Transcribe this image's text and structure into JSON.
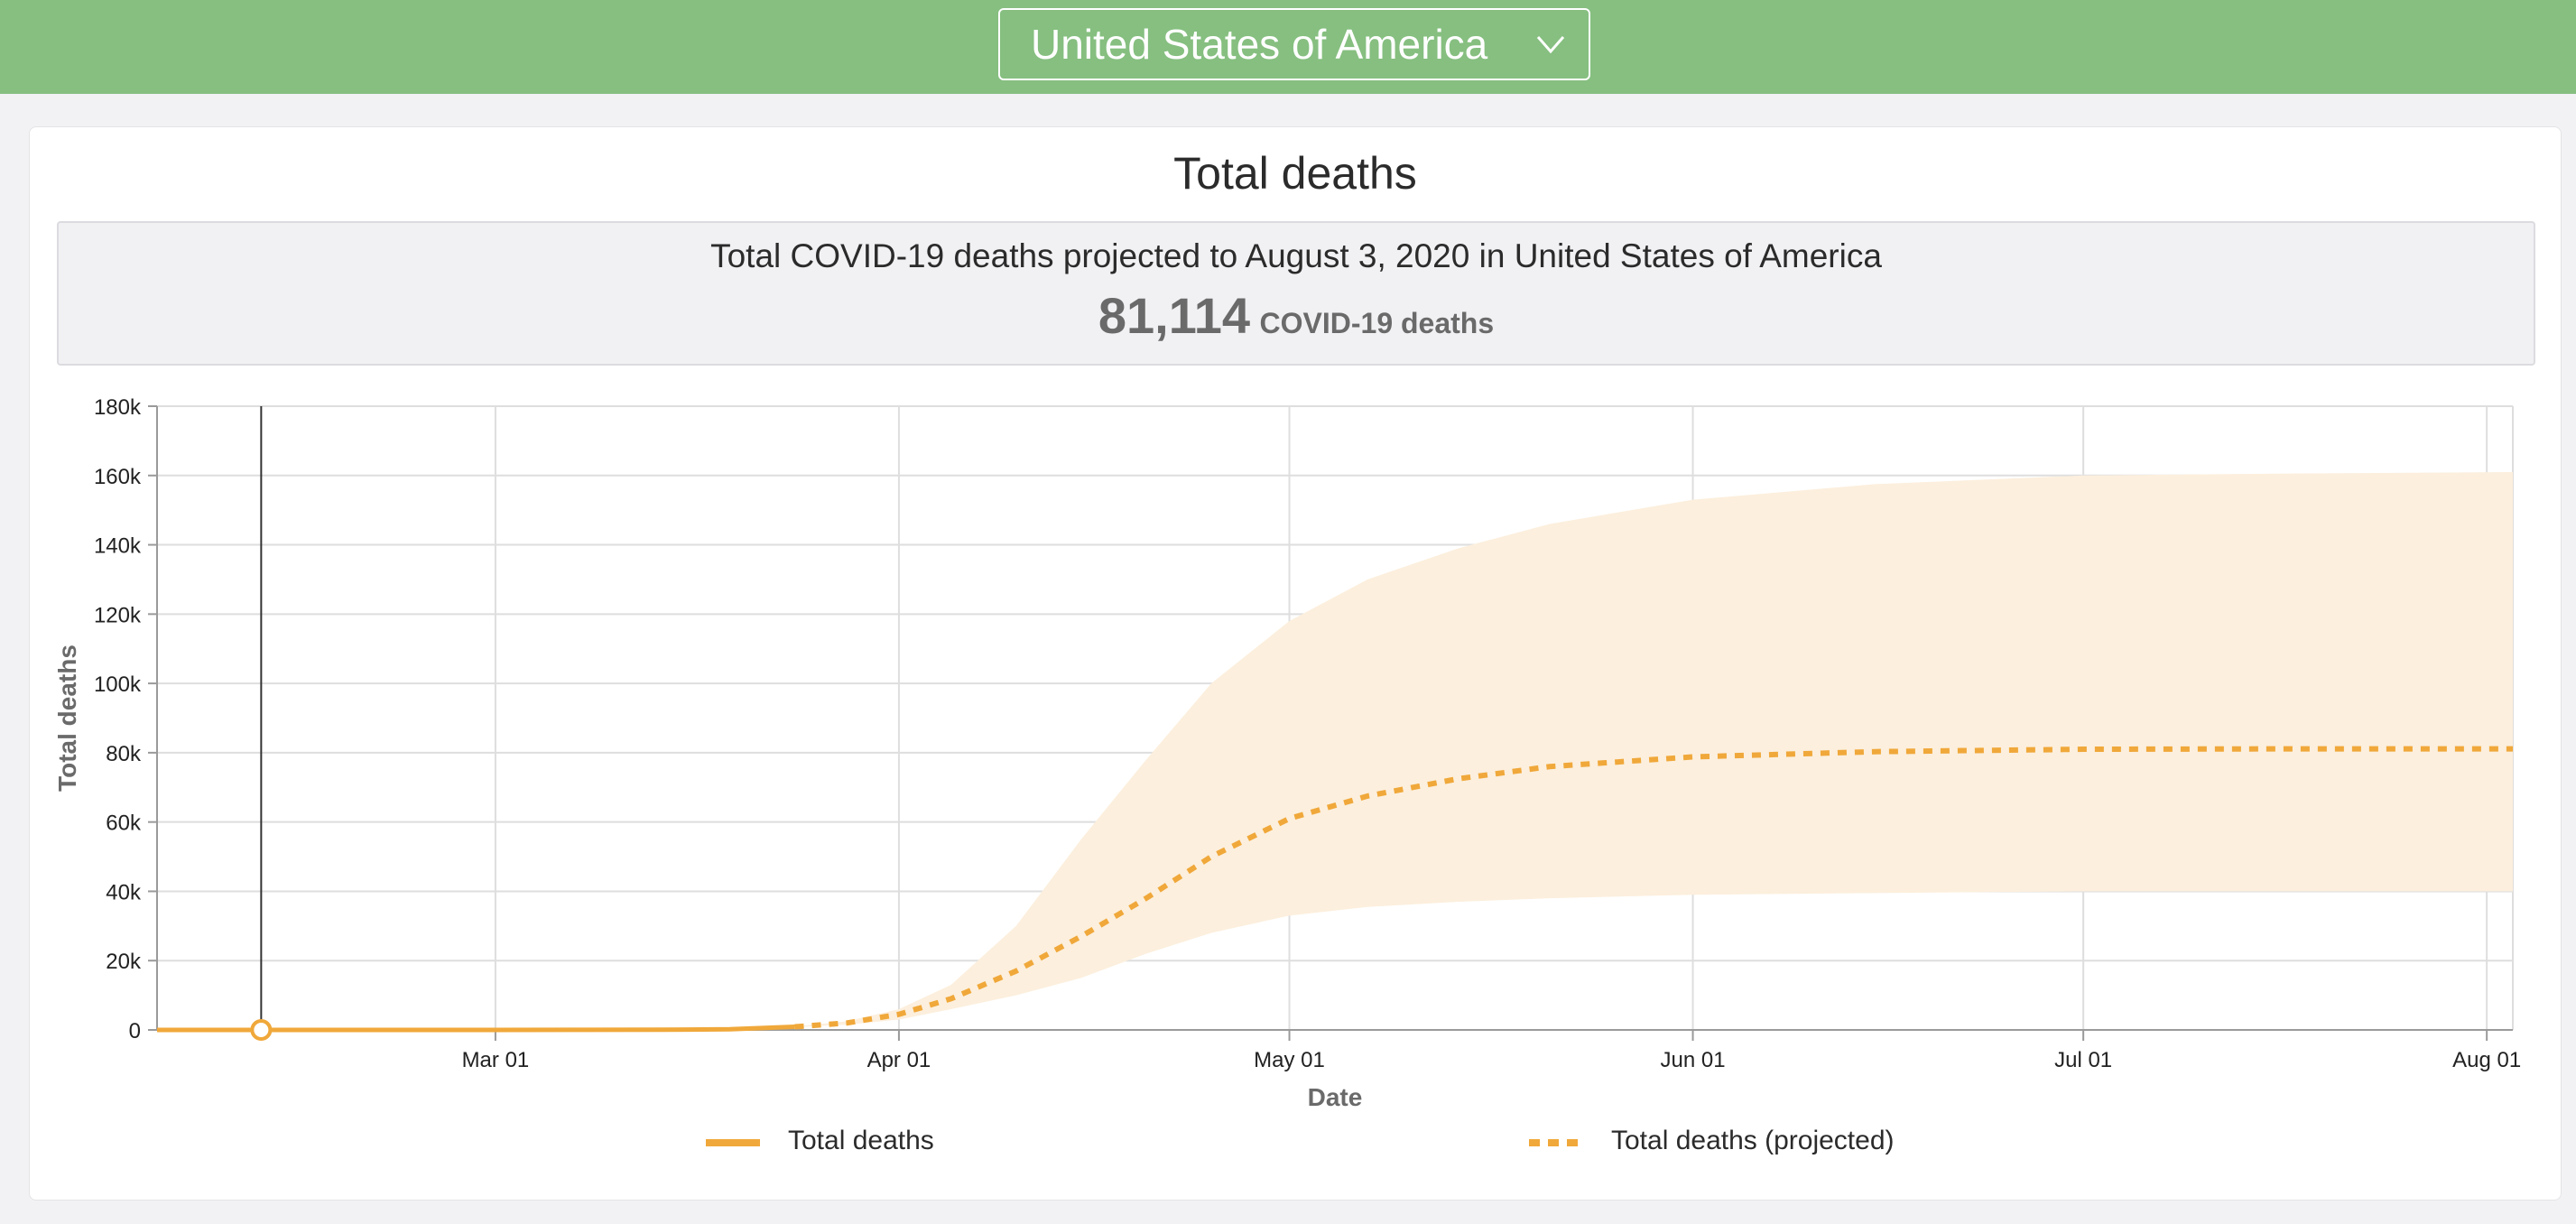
{
  "header": {
    "country_selected": "United States of America",
    "dropdown_icon": "chevron-down-icon"
  },
  "card": {
    "title": "Total deaths",
    "summary_text": "Total COVID-19 deaths projected to August 3, 2020 in United States of America",
    "summary_value": "81,114",
    "summary_unit": "COVID-19 deaths"
  },
  "colors": {
    "header_bg": "#86bf80",
    "series": "#f0a83a",
    "band": "#fcefdd",
    "grid": "#dedede",
    "cursor": "#333333"
  },
  "chart_data": {
    "type": "line",
    "xlabel": "Date",
    "ylabel": "Total deaths",
    "ylim": [
      0,
      180000
    ],
    "xlim": [
      "2020-02-04",
      "2020-08-03"
    ],
    "x_ticks": [
      {
        "label": "Mar 01",
        "date": "2020-03-01"
      },
      {
        "label": "Apr 01",
        "date": "2020-04-01"
      },
      {
        "label": "May 01",
        "date": "2020-05-01"
      },
      {
        "label": "Jun 01",
        "date": "2020-06-01"
      },
      {
        "label": "Jul 01",
        "date": "2020-07-01"
      },
      {
        "label": "Aug 01",
        "date": "2020-08-01"
      }
    ],
    "y_ticks": [
      {
        "label": "0",
        "value": 0
      },
      {
        "label": "20k",
        "value": 20000
      },
      {
        "label": "40k",
        "value": 40000
      },
      {
        "label": "60k",
        "value": 60000
      },
      {
        "label": "80k",
        "value": 80000
      },
      {
        "label": "100k",
        "value": 100000
      },
      {
        "label": "120k",
        "value": 120000
      },
      {
        "label": "140k",
        "value": 140000
      },
      {
        "label": "160k",
        "value": 160000
      },
      {
        "label": "180k",
        "value": 180000
      }
    ],
    "grid": true,
    "legend_position": "bottom",
    "hover_marker": {
      "date": "2020-02-12",
      "value": 0
    },
    "series": [
      {
        "name": "Total deaths",
        "style": "solid",
        "color": "#f0a83a",
        "points": [
          [
            "2020-02-04",
            0
          ],
          [
            "2020-02-12",
            0
          ],
          [
            "2020-02-20",
            0
          ],
          [
            "2020-03-01",
            1
          ],
          [
            "2020-03-08",
            20
          ],
          [
            "2020-03-14",
            60
          ],
          [
            "2020-03-19",
            200
          ],
          [
            "2020-03-24",
            900
          ]
        ]
      },
      {
        "name": "Total deaths (projected)",
        "style": "dashed",
        "color": "#f0a83a",
        "points": [
          [
            "2020-03-24",
            900
          ],
          [
            "2020-03-28",
            2000
          ],
          [
            "2020-04-01",
            4500
          ],
          [
            "2020-04-05",
            9000
          ],
          [
            "2020-04-10",
            17000
          ],
          [
            "2020-04-15",
            27000
          ],
          [
            "2020-04-20",
            38000
          ],
          [
            "2020-04-25",
            50000
          ],
          [
            "2020-05-01",
            61000
          ],
          [
            "2020-05-07",
            67500
          ],
          [
            "2020-05-14",
            72500
          ],
          [
            "2020-05-21",
            76000
          ],
          [
            "2020-06-01",
            78800
          ],
          [
            "2020-06-15",
            80300
          ],
          [
            "2020-07-01",
            81000
          ],
          [
            "2020-07-15",
            81100
          ],
          [
            "2020-08-03",
            81114
          ]
        ]
      }
    ],
    "uncertainty_band": {
      "series": "Total deaths (projected)",
      "upper": [
        [
          "2020-03-24",
          1000
        ],
        [
          "2020-03-28",
          2500
        ],
        [
          "2020-04-01",
          6000
        ],
        [
          "2020-04-05",
          13000
        ],
        [
          "2020-04-10",
          30000
        ],
        [
          "2020-04-15",
          55000
        ],
        [
          "2020-04-20",
          78000
        ],
        [
          "2020-04-25",
          100000
        ],
        [
          "2020-05-01",
          118000
        ],
        [
          "2020-05-07",
          130000
        ],
        [
          "2020-05-14",
          139000
        ],
        [
          "2020-05-21",
          146000
        ],
        [
          "2020-06-01",
          153000
        ],
        [
          "2020-06-15",
          157500
        ],
        [
          "2020-07-01",
          160000
        ],
        [
          "2020-07-15",
          160500
        ],
        [
          "2020-08-03",
          161000
        ]
      ],
      "lower": [
        [
          "2020-03-24",
          800
        ],
        [
          "2020-03-28",
          1500
        ],
        [
          "2020-04-01",
          3000
        ],
        [
          "2020-04-05",
          6000
        ],
        [
          "2020-04-10",
          10000
        ],
        [
          "2020-04-15",
          15000
        ],
        [
          "2020-04-20",
          22000
        ],
        [
          "2020-04-25",
          28000
        ],
        [
          "2020-05-01",
          33000
        ],
        [
          "2020-05-07",
          35500
        ],
        [
          "2020-05-14",
          37000
        ],
        [
          "2020-05-21",
          38000
        ],
        [
          "2020-06-01",
          39000
        ],
        [
          "2020-06-15",
          39500
        ],
        [
          "2020-07-01",
          40000
        ],
        [
          "2020-07-15",
          40000
        ],
        [
          "2020-08-03",
          40000
        ]
      ]
    }
  }
}
